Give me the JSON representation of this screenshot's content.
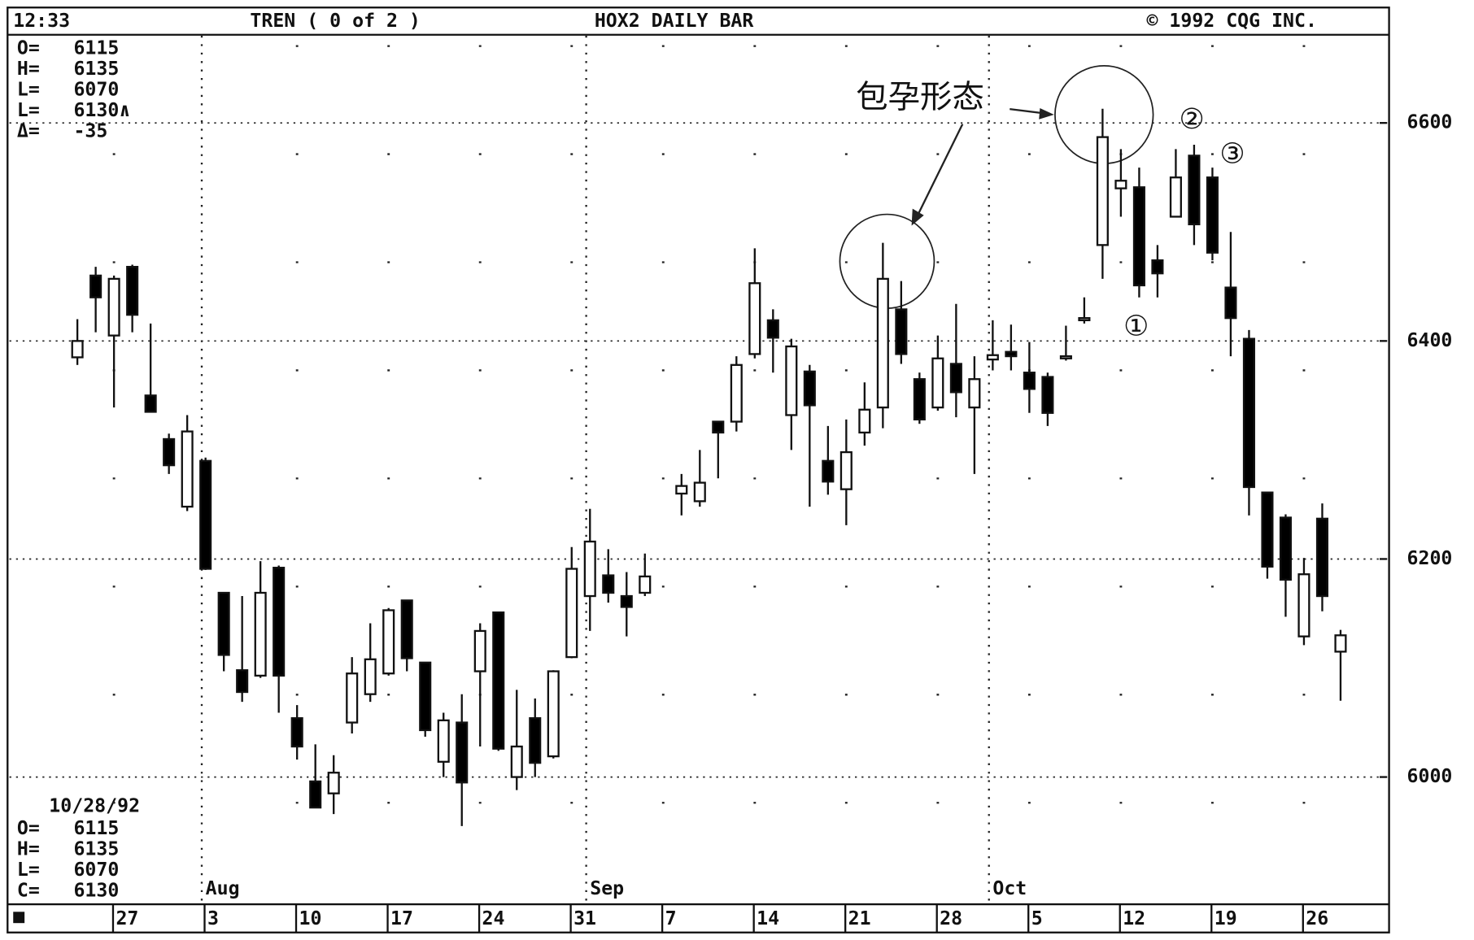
{
  "chart_data": {
    "type": "candlestick",
    "title": "HOX2 DAILY BAR",
    "time": "12:33",
    "study": "TREN ( 0 of 2 )",
    "copyright": "© 1992 CQG INC.",
    "quote_top": [
      [
        "O=",
        "6115"
      ],
      [
        "H=",
        "6135"
      ],
      [
        "L=",
        "6070"
      ],
      [
        "L=",
        "6130∧"
      ],
      [
        "Δ=",
        "-35"
      ]
    ],
    "quote_bottom": {
      "date": "10/28/92",
      "rows": [
        [
          "O=",
          "6115"
        ],
        [
          "H=",
          "6135"
        ],
        [
          "L=",
          "6070"
        ],
        [
          "C=",
          "6130"
        ]
      ]
    },
    "annotations": {
      "pattern": "包孕形态",
      "marks": [
        "①",
        "②",
        "③"
      ]
    },
    "categories": [
      null,
      null,
      "27",
      null,
      null,
      null,
      null,
      "3",
      null,
      null,
      null,
      null,
      "10",
      null,
      null,
      null,
      null,
      "17",
      null,
      null,
      null,
      null,
      "24",
      null,
      null,
      null,
      null,
      "31",
      null,
      null,
      null,
      null,
      "7",
      null,
      null,
      null,
      null,
      "14",
      null,
      null,
      null,
      null,
      "21",
      null,
      null,
      null,
      null,
      "28",
      null,
      null,
      null,
      null,
      "5",
      null,
      null,
      null,
      null,
      "12",
      null,
      null,
      null,
      null,
      "19",
      null,
      null,
      null,
      null,
      "26",
      null,
      null
    ],
    "month_labels": [
      null,
      null,
      null,
      null,
      null,
      null,
      null,
      "Aug",
      null,
      null,
      null,
      null,
      null,
      null,
      null,
      null,
      null,
      null,
      null,
      null,
      null,
      null,
      null,
      null,
      null,
      null,
      null,
      null,
      "Sep",
      null,
      null,
      null,
      null,
      null,
      null,
      null,
      null,
      null,
      null,
      null,
      null,
      null,
      null,
      null,
      null,
      null,
      null,
      null,
      null,
      null,
      "Oct",
      null,
      null,
      null,
      null,
      null,
      null,
      null,
      null,
      null,
      null,
      null,
      null,
      null,
      null,
      null,
      null,
      null,
      null,
      null
    ],
    "open": [
      6385,
      6460,
      6405,
      6468,
      6350,
      6310,
      6248,
      6290,
      6169,
      6098,
      6093,
      6192,
      6054,
      5996,
      5985,
      6050,
      6076,
      6095,
      6162,
      6105,
      6014,
      6050,
      6097,
      6151,
      6000,
      6054,
      6019,
      6110,
      6166,
      6185,
      6166,
      6169,
      null,
      6260,
      6253,
      6326,
      6326,
      6388,
      6419,
      6332,
      6372,
      6290,
      6264,
      6316,
      6339,
      6429,
      6365,
      6339,
      6379,
      6339,
      6383,
      6390,
      6371,
      6367,
      6384,
      6419,
      6488,
      6540,
      6541,
      6474,
      6514,
      6570,
      6550,
      6449,
      6402,
      6261,
      6238,
      6129,
      6237,
      6115
    ],
    "high": [
      6420,
      6468,
      6460,
      6470,
      6416,
      6315,
      6332,
      6293,
      6169,
      6166,
      6198,
      6194,
      6066,
      6030,
      6020,
      6110,
      6141,
      6155,
      6162,
      6105,
      6059,
      6076,
      6141,
      6151,
      6080,
      6072,
      6098,
      6211,
      6246,
      6209,
      6188,
      6205,
      null,
      6278,
      6300,
      6326,
      6386,
      6485,
      6429,
      6402,
      6378,
      6322,
      6328,
      6362,
      6490,
      6455,
      6371,
      6405,
      6434,
      6386,
      6419,
      6415,
      6399,
      6371,
      6414,
      6440,
      6613,
      6576,
      6559,
      6488,
      6576,
      6580,
      6559,
      6500,
      6410,
      6261,
      6241,
      6201,
      6251,
      6135
    ],
    "low": [
      6378,
      6408,
      6339,
      6408,
      6335,
      6278,
      6244,
      6190,
      6097,
      6069,
      6091,
      6059,
      6016,
      5972,
      5966,
      6040,
      6069,
      6093,
      6097,
      6037,
      6000,
      5955,
      6028,
      6024,
      5988,
      6000,
      6017,
      6109,
      6134,
      6160,
      6129,
      6166,
      null,
      6240,
      6248,
      6274,
      6317,
      6384,
      6371,
      6300,
      6248,
      6259,
      6231,
      6304,
      6320,
      6379,
      6324,
      6336,
      6330,
      6278,
      6373,
      6373,
      6334,
      6322,
      6382,
      6416,
      6457,
      6514,
      6440,
      6440,
      6514,
      6488,
      6474,
      6386,
      6240,
      6182,
      6147,
      6121,
      6152,
      6070
    ],
    "close": [
      6400,
      6440,
      6457,
      6424,
      6335,
      6286,
      6317,
      6191,
      6112,
      6078,
      6169,
      6093,
      6028,
      5972,
      6004,
      6095,
      6108,
      6153,
      6109,
      6043,
      6052,
      5995,
      6134,
      6026,
      6028,
      6013,
      6097,
      6191,
      6216,
      6169,
      6156,
      6184,
      null,
      6267,
      6270,
      6316,
      6378,
      6453,
      6403,
      6395,
      6341,
      6271,
      6298,
      6337,
      6457,
      6388,
      6328,
      6384,
      6353,
      6365,
      6387,
      6386,
      6356,
      6334,
      6386,
      6421,
      6587,
      6547,
      6451,
      6462,
      6550,
      6507,
      6481,
      6421,
      6266,
      6193,
      6181,
      6186,
      6166,
      6130
    ],
    "up_color": "#ffffff",
    "down_color": "#000000",
    "ylim": [
      5885,
      6680
    ],
    "yticks": [
      6000,
      6200,
      6400,
      6600
    ],
    "grid": true
  }
}
